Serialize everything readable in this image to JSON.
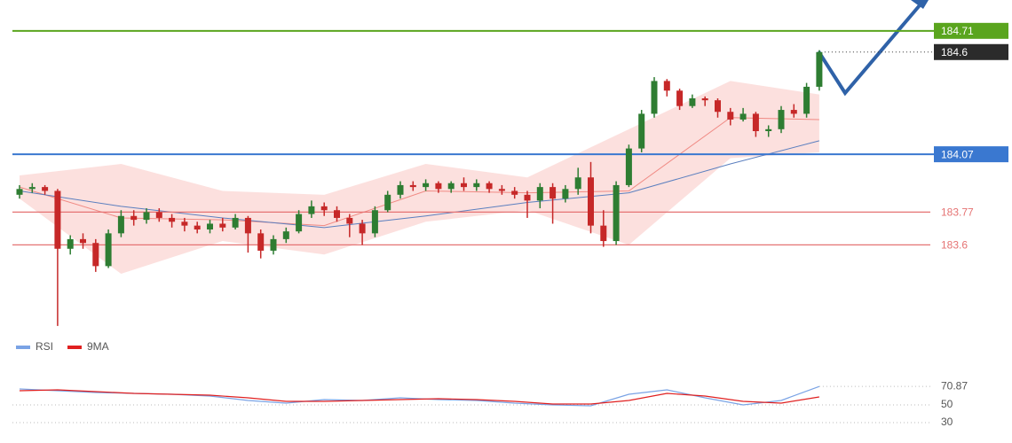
{
  "chart_data": [
    {
      "type": "candlestick",
      "ylim": [
        183.17,
        184.87
      ],
      "open": [
        183.86,
        183.89,
        183.9,
        183.88,
        183.58,
        183.63,
        183.61,
        183.49,
        183.66,
        183.75,
        183.73,
        183.77,
        183.74,
        183.72,
        183.7,
        183.68,
        183.71,
        183.69,
        183.74,
        183.66,
        183.57,
        183.63,
        183.67,
        183.76,
        183.8,
        183.78,
        183.74,
        183.71,
        183.66,
        183.78,
        183.86,
        183.91,
        183.9,
        183.92,
        183.89,
        183.92,
        183.9,
        183.92,
        183.89,
        183.88,
        183.86,
        183.83,
        183.9,
        183.84,
        183.89,
        183.95,
        183.7,
        183.62,
        183.91,
        184.1,
        184.28,
        184.45,
        184.4,
        184.32,
        184.36,
        184.35,
        184.29,
        184.25,
        184.28,
        184.19,
        184.2,
        184.3,
        184.28,
        184.42
      ],
      "high": [
        183.91,
        183.92,
        183.91,
        183.89,
        183.65,
        183.66,
        183.63,
        183.68,
        183.78,
        183.78,
        183.79,
        183.79,
        183.76,
        183.74,
        183.72,
        183.73,
        183.74,
        183.76,
        183.75,
        183.68,
        183.65,
        183.69,
        183.78,
        183.83,
        183.82,
        183.8,
        183.76,
        183.73,
        183.8,
        183.88,
        183.93,
        183.93,
        183.94,
        183.93,
        183.93,
        183.95,
        183.94,
        183.93,
        183.91,
        183.9,
        183.88,
        183.92,
        183.92,
        183.91,
        184.0,
        184.03,
        183.78,
        183.93,
        184.12,
        184.3,
        184.47,
        184.46,
        184.41,
        184.38,
        184.37,
        184.36,
        184.31,
        184.31,
        184.29,
        184.22,
        184.32,
        184.33,
        184.44,
        184.61
      ],
      "low": [
        183.84,
        183.87,
        183.86,
        183.18,
        183.55,
        183.58,
        183.46,
        183.48,
        183.64,
        183.7,
        183.71,
        183.72,
        183.69,
        183.67,
        183.66,
        183.66,
        183.67,
        183.68,
        183.56,
        183.53,
        183.55,
        183.61,
        183.66,
        183.74,
        183.75,
        183.72,
        183.64,
        183.6,
        183.64,
        183.77,
        183.84,
        183.88,
        183.88,
        183.87,
        183.87,
        183.88,
        183.88,
        183.87,
        183.86,
        183.84,
        183.74,
        183.79,
        183.71,
        183.82,
        183.86,
        183.66,
        183.59,
        183.6,
        183.9,
        184.08,
        184.26,
        184.37,
        184.3,
        184.31,
        184.32,
        184.26,
        184.22,
        184.24,
        184.16,
        184.16,
        184.18,
        184.26,
        184.26,
        184.4
      ],
      "close": [
        183.89,
        183.9,
        183.88,
        183.58,
        183.63,
        183.61,
        183.49,
        183.66,
        183.75,
        183.73,
        183.77,
        183.74,
        183.72,
        183.7,
        183.68,
        183.71,
        183.69,
        183.74,
        183.66,
        183.57,
        183.63,
        183.67,
        183.76,
        183.8,
        183.78,
        183.74,
        183.71,
        183.66,
        183.78,
        183.86,
        183.91,
        183.9,
        183.92,
        183.89,
        183.92,
        183.9,
        183.92,
        183.89,
        183.88,
        183.86,
        183.83,
        183.9,
        183.84,
        183.89,
        183.95,
        183.7,
        183.62,
        183.91,
        184.1,
        184.28,
        184.45,
        184.4,
        184.32,
        184.36,
        184.35,
        184.29,
        184.25,
        184.28,
        184.19,
        184.2,
        184.3,
        184.28,
        184.42,
        184.6
      ],
      "up_color": "#2e7d32",
      "down_color": "#c62828",
      "band_x": [
        0,
        8,
        16,
        24,
        32,
        40,
        48,
        56,
        63
      ],
      "upper_band": [
        183.96,
        184.02,
        183.88,
        183.86,
        184.02,
        183.95,
        184.2,
        184.45,
        184.38
      ],
      "lower_band": [
        183.84,
        183.45,
        183.62,
        183.55,
        183.72,
        183.78,
        183.6,
        184.05,
        184.08
      ],
      "middle_band": [
        183.9,
        183.74,
        183.73,
        183.7,
        183.88,
        183.87,
        183.88,
        184.26,
        184.25
      ],
      "slow_ma": [
        183.88,
        183.8,
        183.74,
        183.69,
        183.75,
        183.82,
        183.87,
        184.02,
        184.14
      ],
      "band_color": "#f9c6c2",
      "middle_color": "#f08a84",
      "slow_color": "#5b7fbf",
      "levels": [
        {
          "value": 184.71,
          "color": "#5aa51e",
          "boxed": true
        },
        {
          "value": 184.07,
          "color": "#3a78d0",
          "boxed": true
        },
        {
          "value": 183.77,
          "color": "#e57373",
          "boxed": false
        },
        {
          "value": 183.6,
          "color": "#e57373",
          "boxed": false
        }
      ]
    },
    {
      "type": "line",
      "ylim": [
        23,
        83
      ],
      "yticks": [
        30,
        50
      ],
      "x": [
        0,
        3,
        6,
        9,
        12,
        15,
        18,
        21,
        24,
        27,
        30,
        33,
        36,
        39,
        42,
        45,
        48,
        51,
        54,
        57,
        60,
        63
      ],
      "series": [
        {
          "name": "RSI",
          "color": "#7aa3e5",
          "values": [
            68,
            66,
            64,
            63,
            62,
            60,
            55,
            52,
            56,
            55,
            58,
            56,
            55,
            52,
            50,
            49,
            62,
            67,
            58,
            50,
            55,
            70.87
          ]
        },
        {
          "name": "9MA",
          "color": "#e02020",
          "values": [
            66,
            67,
            65,
            63,
            62,
            61,
            58,
            54,
            54,
            55,
            56,
            57,
            56,
            54,
            51,
            51,
            55,
            63,
            60,
            54,
            52,
            59
          ]
        }
      ]
    }
  ]
}
